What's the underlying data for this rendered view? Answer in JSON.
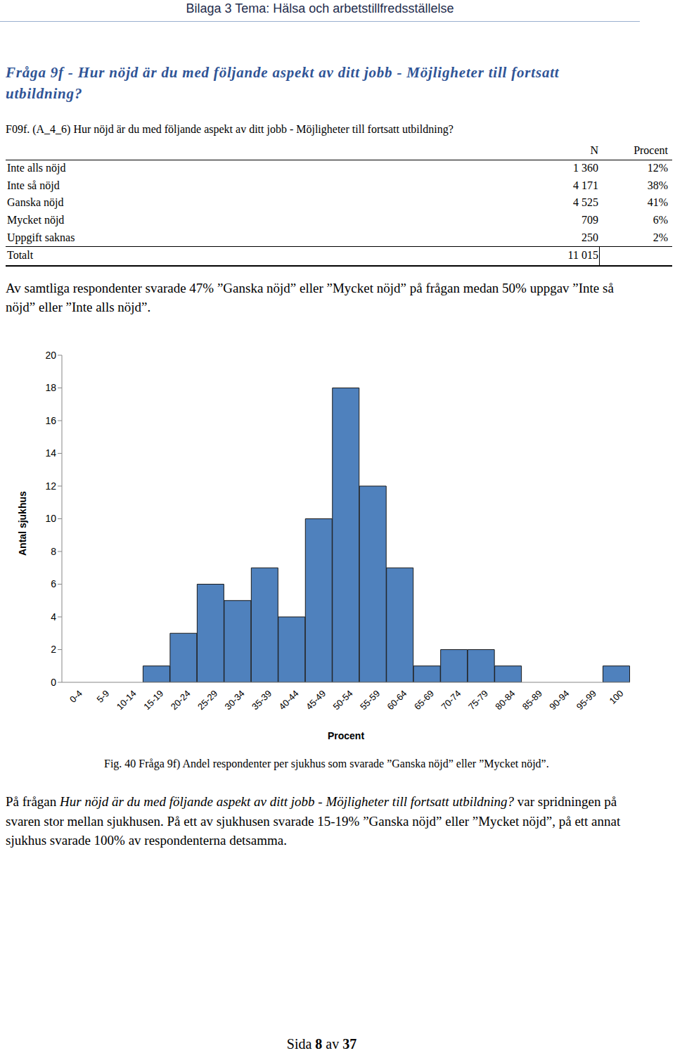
{
  "header": {
    "title": "Bilaga 3 Tema: Hälsa och arbetstillfredsställelse"
  },
  "heading": "Fråga 9f - Hur nöjd är du med följande aspekt av ditt jobb - Möjligheter till fortsatt utbildning?",
  "question": "F09f. (A_4_6) Hur nöjd är du med följande aspekt av ditt jobb - Möjligheter till fortsatt utbildning?",
  "table": {
    "columns": [
      "N",
      "Procent"
    ],
    "rows": [
      [
        "Inte alls nöjd",
        "1 360",
        "12%"
      ],
      [
        "Inte så nöjd",
        "4 171",
        "38%"
      ],
      [
        "Ganska nöjd",
        "4 525",
        "41%"
      ],
      [
        "Mycket nöjd",
        "709",
        "6%"
      ],
      [
        "Uppgift saknas",
        "250",
        "2%"
      ]
    ],
    "total": [
      "Totalt",
      "11 015",
      ""
    ]
  },
  "summary": "Av samtliga respondenter svarade 47% ”Ganska nöjd” eller ”Mycket nöjd” på frågan medan 50% uppgav ”Inte så nöjd” eller ”Inte alls nöjd”.",
  "chart_data": {
    "type": "bar",
    "categories": [
      "0-4",
      "5-9",
      "10-14",
      "15-19",
      "20-24",
      "25-29",
      "30-34",
      "35-39",
      "40-44",
      "45-49",
      "50-54",
      "55-59",
      "60-64",
      "65-69",
      "70-74",
      "75-79",
      "80-84",
      "85-89",
      "90-94",
      "95-99",
      "100"
    ],
    "values": [
      0,
      0,
      0,
      1,
      3,
      6,
      5,
      7,
      4,
      10,
      18,
      12,
      7,
      1,
      2,
      2,
      1,
      0,
      0,
      0,
      1
    ],
    "color": "#4f81bd",
    "x_label": "Procent",
    "y_label": "Antal sjukhus",
    "ylim": [
      0,
      20
    ],
    "yticks": [
      0,
      2,
      4,
      6,
      8,
      10,
      12,
      14,
      16,
      18,
      20
    ],
    "grid": false
  },
  "caption": "Fig. 40 Fråga 9f) Andel respondenter per sjukhus som svarade ”Ganska nöjd” eller ”Mycket nöjd”.",
  "paragraph": {
    "lead": "På frågan",
    "question_italic": "Hur nöjd är du med följande aspekt av ditt jobb - Möjligheter till fortsatt utbildning?",
    "rest": "var spridningen på svaren stor mellan sjukhusen. På ett av sjukhusen svarade 15-19% ”Ganska nöjd” eller ”Mycket nöjd”, på ett annat sjukhus svarade 100% av respondenterna detsamma."
  },
  "footer": {
    "before": "Sida",
    "page": 8,
    "middle": "av",
    "total": 37
  }
}
